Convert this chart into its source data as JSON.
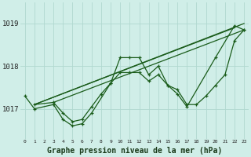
{
  "background_color": "#d0eee8",
  "line_color": "#1a5c1a",
  "grid_color": "#b0d8d0",
  "xlabel": "Graphe pression niveau de la mer (hPa)",
  "xlabel_fontsize": 7,
  "ylabel_ticks": [
    1017,
    1018,
    1019
  ],
  "xlim": [
    -0.5,
    23.5
  ],
  "ylim": [
    1016.3,
    1019.5
  ],
  "series": {
    "zigzag": {
      "x": [
        0,
        1,
        3,
        4,
        5,
        6,
        7,
        9,
        10,
        11,
        12,
        13,
        14,
        15,
        16,
        17,
        20,
        22,
        23
      ],
      "y": [
        1017.3,
        1017.0,
        1017.1,
        1016.75,
        1016.6,
        1016.65,
        1016.9,
        1017.6,
        1018.2,
        1018.2,
        1018.2,
        1017.8,
        1018.0,
        1017.55,
        1017.35,
        1017.05,
        1018.2,
        1018.95,
        1018.85
      ]
    },
    "trend1": {
      "x": [
        1,
        22
      ],
      "y": [
        1017.1,
        1018.9
      ]
    },
    "trend2": {
      "x": [
        1,
        23
      ],
      "y": [
        1017.1,
        1019.0
      ]
    },
    "trend3": {
      "x": [
        3,
        23
      ],
      "y": [
        1017.15,
        1018.85
      ]
    },
    "lower": {
      "x": [
        1,
        3,
        4,
        5,
        6,
        7,
        8,
        9,
        10,
        11,
        12,
        13,
        14,
        15,
        16,
        17,
        18,
        19,
        20,
        21,
        22,
        23
      ],
      "y": [
        1017.1,
        1017.15,
        1016.9,
        1016.7,
        1016.75,
        1017.05,
        1017.35,
        1017.6,
        1017.85,
        1017.85,
        1017.85,
        1017.65,
        1017.8,
        1017.55,
        1017.45,
        1017.1,
        1017.1,
        1017.3,
        1017.55,
        1017.8,
        1018.6,
        1018.85
      ]
    }
  }
}
